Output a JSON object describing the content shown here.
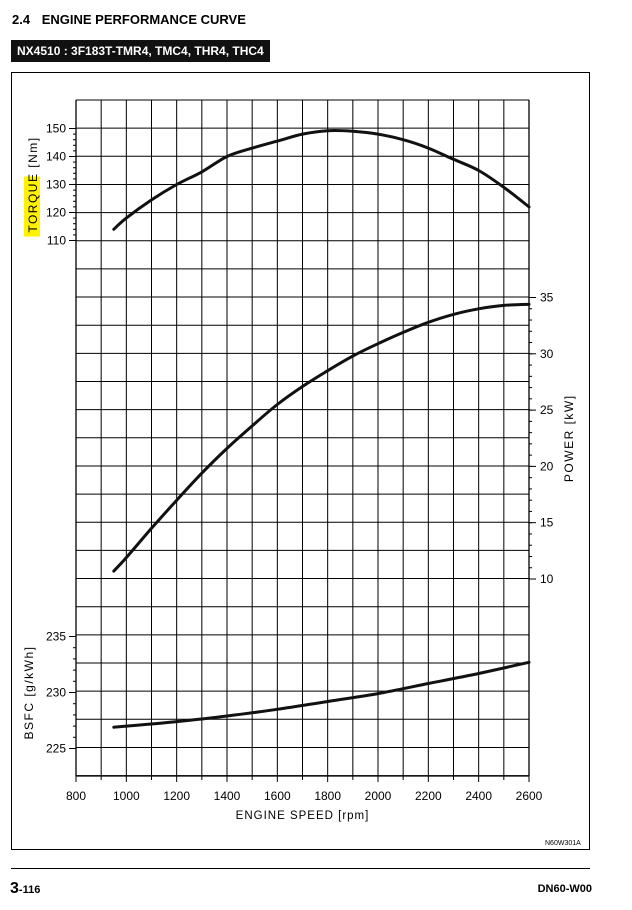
{
  "header": {
    "section_number": "2.4",
    "section_title": "ENGINE PERFORMANCE CURVE",
    "model_label": "NX4510 : 3F183T-TMR4, TMC4, THR4, THC4"
  },
  "figure_code": "N60W301A",
  "footer": {
    "page_major": "3",
    "page_minor": "-116",
    "doc_code": "DN60-W00"
  },
  "colors": {
    "curve": "#111111",
    "grid": "#000000",
    "highlight": "#fff200"
  },
  "chart_data": {
    "type": "line",
    "xlabel": "ENGINE SPEED [rpm]",
    "xlim": [
      800,
      2600
    ],
    "xticks": [
      800,
      1000,
      1200,
      1400,
      1600,
      1800,
      2000,
      2200,
      2400,
      2600
    ],
    "grid": true,
    "panels": [
      {
        "id": "torque",
        "ylabel": "TORQUE [Nm]",
        "ylabel_highlight_word": "TORQUE",
        "ylabel_rest": "[Nm]",
        "axis_side": "left",
        "ylim": [
          110,
          150
        ],
        "yticks": [
          110,
          120,
          130,
          140,
          150
        ],
        "series": [
          {
            "x": [
              950,
              1000,
              1100,
              1200,
              1300,
              1400,
              1500,
              1600,
              1700,
              1800,
              1900,
              2000,
              2100,
              2200,
              2300,
              2400,
              2500,
              2600
            ],
            "y": [
              114,
              118,
              124.5,
              130,
              134.5,
              140,
              143,
              145.5,
              148,
              149.2,
              149,
              148,
              146,
              143,
              139,
              135,
              129,
              122
            ]
          }
        ]
      },
      {
        "id": "power",
        "ylabel": "POWER [kW]",
        "axis_side": "right",
        "ylim": [
          10,
          35
        ],
        "yticks": [
          10,
          15,
          20,
          25,
          30,
          35
        ],
        "series": [
          {
            "x": [
              950,
              1000,
              1100,
              1200,
              1300,
              1400,
              1500,
              1600,
              1700,
              1800,
              1900,
              2000,
              2100,
              2200,
              2300,
              2400,
              2500,
              2600
            ],
            "y": [
              10.7,
              11.9,
              14.5,
              17.0,
              19.4,
              21.6,
              23.6,
              25.5,
              27.1,
              28.5,
              29.8,
              30.9,
              31.9,
              32.8,
              33.5,
              34.0,
              34.3,
              34.4
            ]
          }
        ]
      },
      {
        "id": "bsfc",
        "ylabel": "BSFC [g/kWh]",
        "axis_side": "left",
        "ylim": [
          225,
          235
        ],
        "yticks": [
          225,
          230,
          235
        ],
        "series": [
          {
            "x": [
              950,
              1000,
              1200,
              1400,
              1600,
              1800,
              2000,
              2200,
              2400,
              2600
            ],
            "y": [
              226.9,
              227.0,
              227.4,
              227.9,
              228.5,
              229.2,
              229.9,
              230.8,
              231.7,
              232.7
            ]
          }
        ]
      }
    ]
  }
}
